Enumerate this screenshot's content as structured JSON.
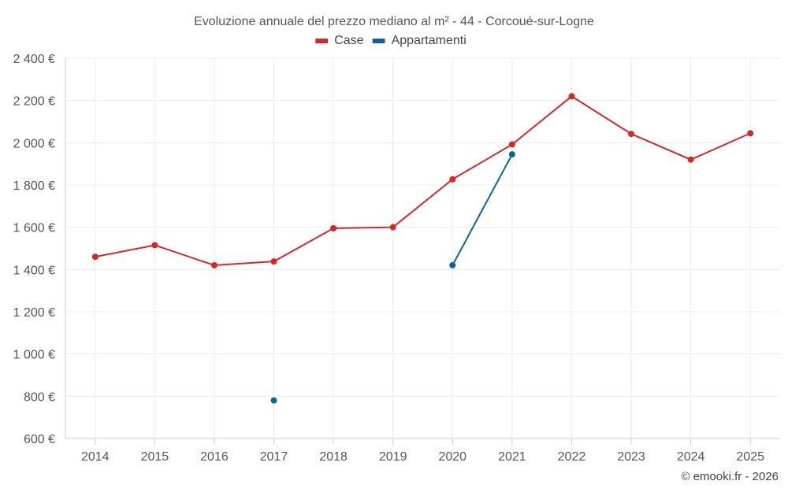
{
  "chart_data": {
    "type": "line",
    "title": "Evoluzione annuale del prezzo mediano al m² - 44 - Corcoué-sur-Logne",
    "credit": "© emooki.fr - 2026",
    "categories": [
      "2014",
      "2015",
      "2016",
      "2017",
      "2018",
      "2019",
      "2020",
      "2021",
      "2022",
      "2023",
      "2024",
      "2025"
    ],
    "y_ticks": [
      600,
      800,
      1000,
      1200,
      1400,
      1600,
      1800,
      2000,
      2200,
      2400
    ],
    "y_tick_labels": [
      "600 €",
      "800 €",
      "1 000 €",
      "1 200 €",
      "1 400 €",
      "1 600 €",
      "1 800 €",
      "2 000 €",
      "2 200 €",
      "2 400 €"
    ],
    "ylim": [
      600,
      2400
    ],
    "legend_position": "top-center",
    "series": [
      {
        "name": "Case",
        "color": "#d62728",
        "values": [
          1460,
          1515,
          1420,
          1438,
          1595,
          1600,
          1827,
          1992,
          2220,
          2042,
          1920,
          2045
        ]
      },
      {
        "name": "Appartamenti",
        "color": "#0e6399",
        "values": [
          null,
          null,
          null,
          780,
          null,
          null,
          1420,
          1945,
          null,
          null,
          null,
          null
        ]
      }
    ]
  }
}
